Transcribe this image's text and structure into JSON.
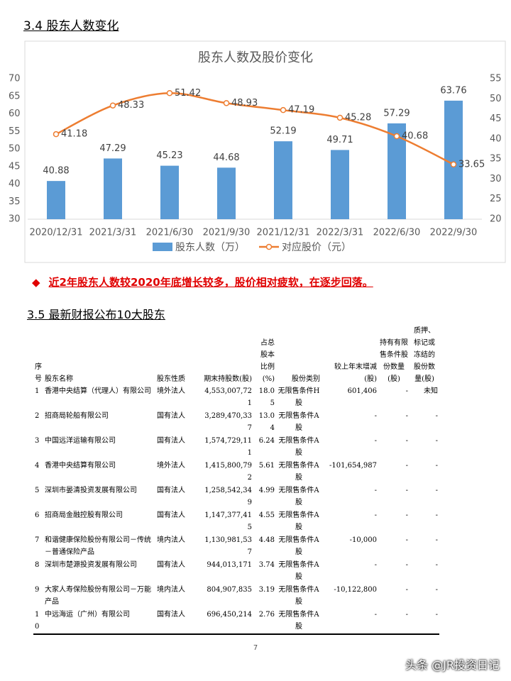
{
  "section_1": {
    "heading": "3.4 股东人数变化"
  },
  "chart_data": {
    "type": "bar-line",
    "title": "股东人数及股价变化",
    "categories": [
      "2020/12/31",
      "2021/3/31",
      "2021/6/30",
      "2021/9/30",
      "2021/12/31",
      "2022/3/31",
      "2022/6/30",
      "2022/9/30"
    ],
    "series": [
      {
        "name": "股东人数（万）",
        "type": "bar",
        "color": "#5b9bd5",
        "values": [
          40.88,
          47.29,
          45.23,
          44.68,
          52.19,
          49.71,
          57.29,
          63.76
        ]
      },
      {
        "name": "对应股价（元）",
        "type": "line",
        "axis": "y2",
        "color": "#ed7d31",
        "values": [
          41.18,
          48.33,
          51.42,
          48.93,
          47.19,
          45.28,
          40.68,
          33.65
        ]
      }
    ],
    "ylim": [
      30,
      70
    ],
    "yticks": [
      30,
      35,
      40,
      45,
      50,
      55,
      60,
      65,
      70
    ],
    "y2lim": [
      20,
      55
    ],
    "y2ticks": [
      20,
      25,
      30,
      35,
      40,
      45,
      50,
      55
    ],
    "legend": "bottom"
  },
  "bullet": "近2年股东人数较2020年底增长较多，股价相对疲软，在逐步回落。",
  "section_2": {
    "heading": "3.5 最新财报公布10大股东"
  },
  "table": {
    "header": [
      "序号",
      "股东名称",
      "股东性质",
      "期末持股数(股)",
      "占总股本比例(%)",
      "股份类别",
      "较上年末增减(股)",
      "持有有限售条件股份数量(股)",
      "质押、标记或冻结的股份数量(股)"
    ],
    "rows": [
      [
        "1",
        "香港中央结算（代理人）有限公司",
        "境外法人",
        "4,553,007,721",
        "18.05",
        "无限售条件H股",
        "601,406",
        "-",
        "未知"
      ],
      [
        "2",
        "招商局轮船有限公司",
        "国有法人",
        "3,289,470,337",
        "13.04",
        "无限售条件A股",
        "-",
        "-",
        "-"
      ],
      [
        "3",
        "中国远洋运输有限公司",
        "国有法人",
        "1,574,729,111",
        "6.24",
        "无限售条件A股",
        "-",
        "-",
        "-"
      ],
      [
        "4",
        "香港中央结算有限公司",
        "境外法人",
        "1,415,800,792",
        "5.61",
        "无限售条件A股",
        "-101,654,987",
        "-",
        "-"
      ],
      [
        "5",
        "深圳市晏清投资发展有限公司",
        "国有法人",
        "1,258,542,349",
        "4.99",
        "无限售条件A股",
        "-",
        "-",
        "-"
      ],
      [
        "6",
        "招商局金融控股有限公司",
        "国有法人",
        "1,147,377,415",
        "4.55",
        "无限售条件A股",
        "-",
        "-",
        "-"
      ],
      [
        "7",
        "和谐健康保险股份有限公司－传统－普通保险产品",
        "境内法人",
        "1,130,981,537",
        "4.48",
        "无限售条件A股",
        "-10,000",
        "-",
        "-"
      ],
      [
        "8",
        "深圳市楚源投资发展有限公司",
        "国有法人",
        "944,013,171",
        "3.74",
        "无限售条件A股",
        "-",
        "-",
        "-"
      ],
      [
        "9",
        "大家人寿保险股份有限公司－万能产品",
        "境内法人",
        "804,907,835",
        "3.19",
        "无限售条件A股",
        "-10,122,800",
        "-",
        "-"
      ],
      [
        "10",
        "中远海运（广州）有限公司",
        "国有法人",
        "696,450,214",
        "2.76",
        "无限售条件A股",
        "-",
        "-",
        "-"
      ]
    ]
  },
  "page_number": "7",
  "watermark": "头条 @JR投资日记"
}
